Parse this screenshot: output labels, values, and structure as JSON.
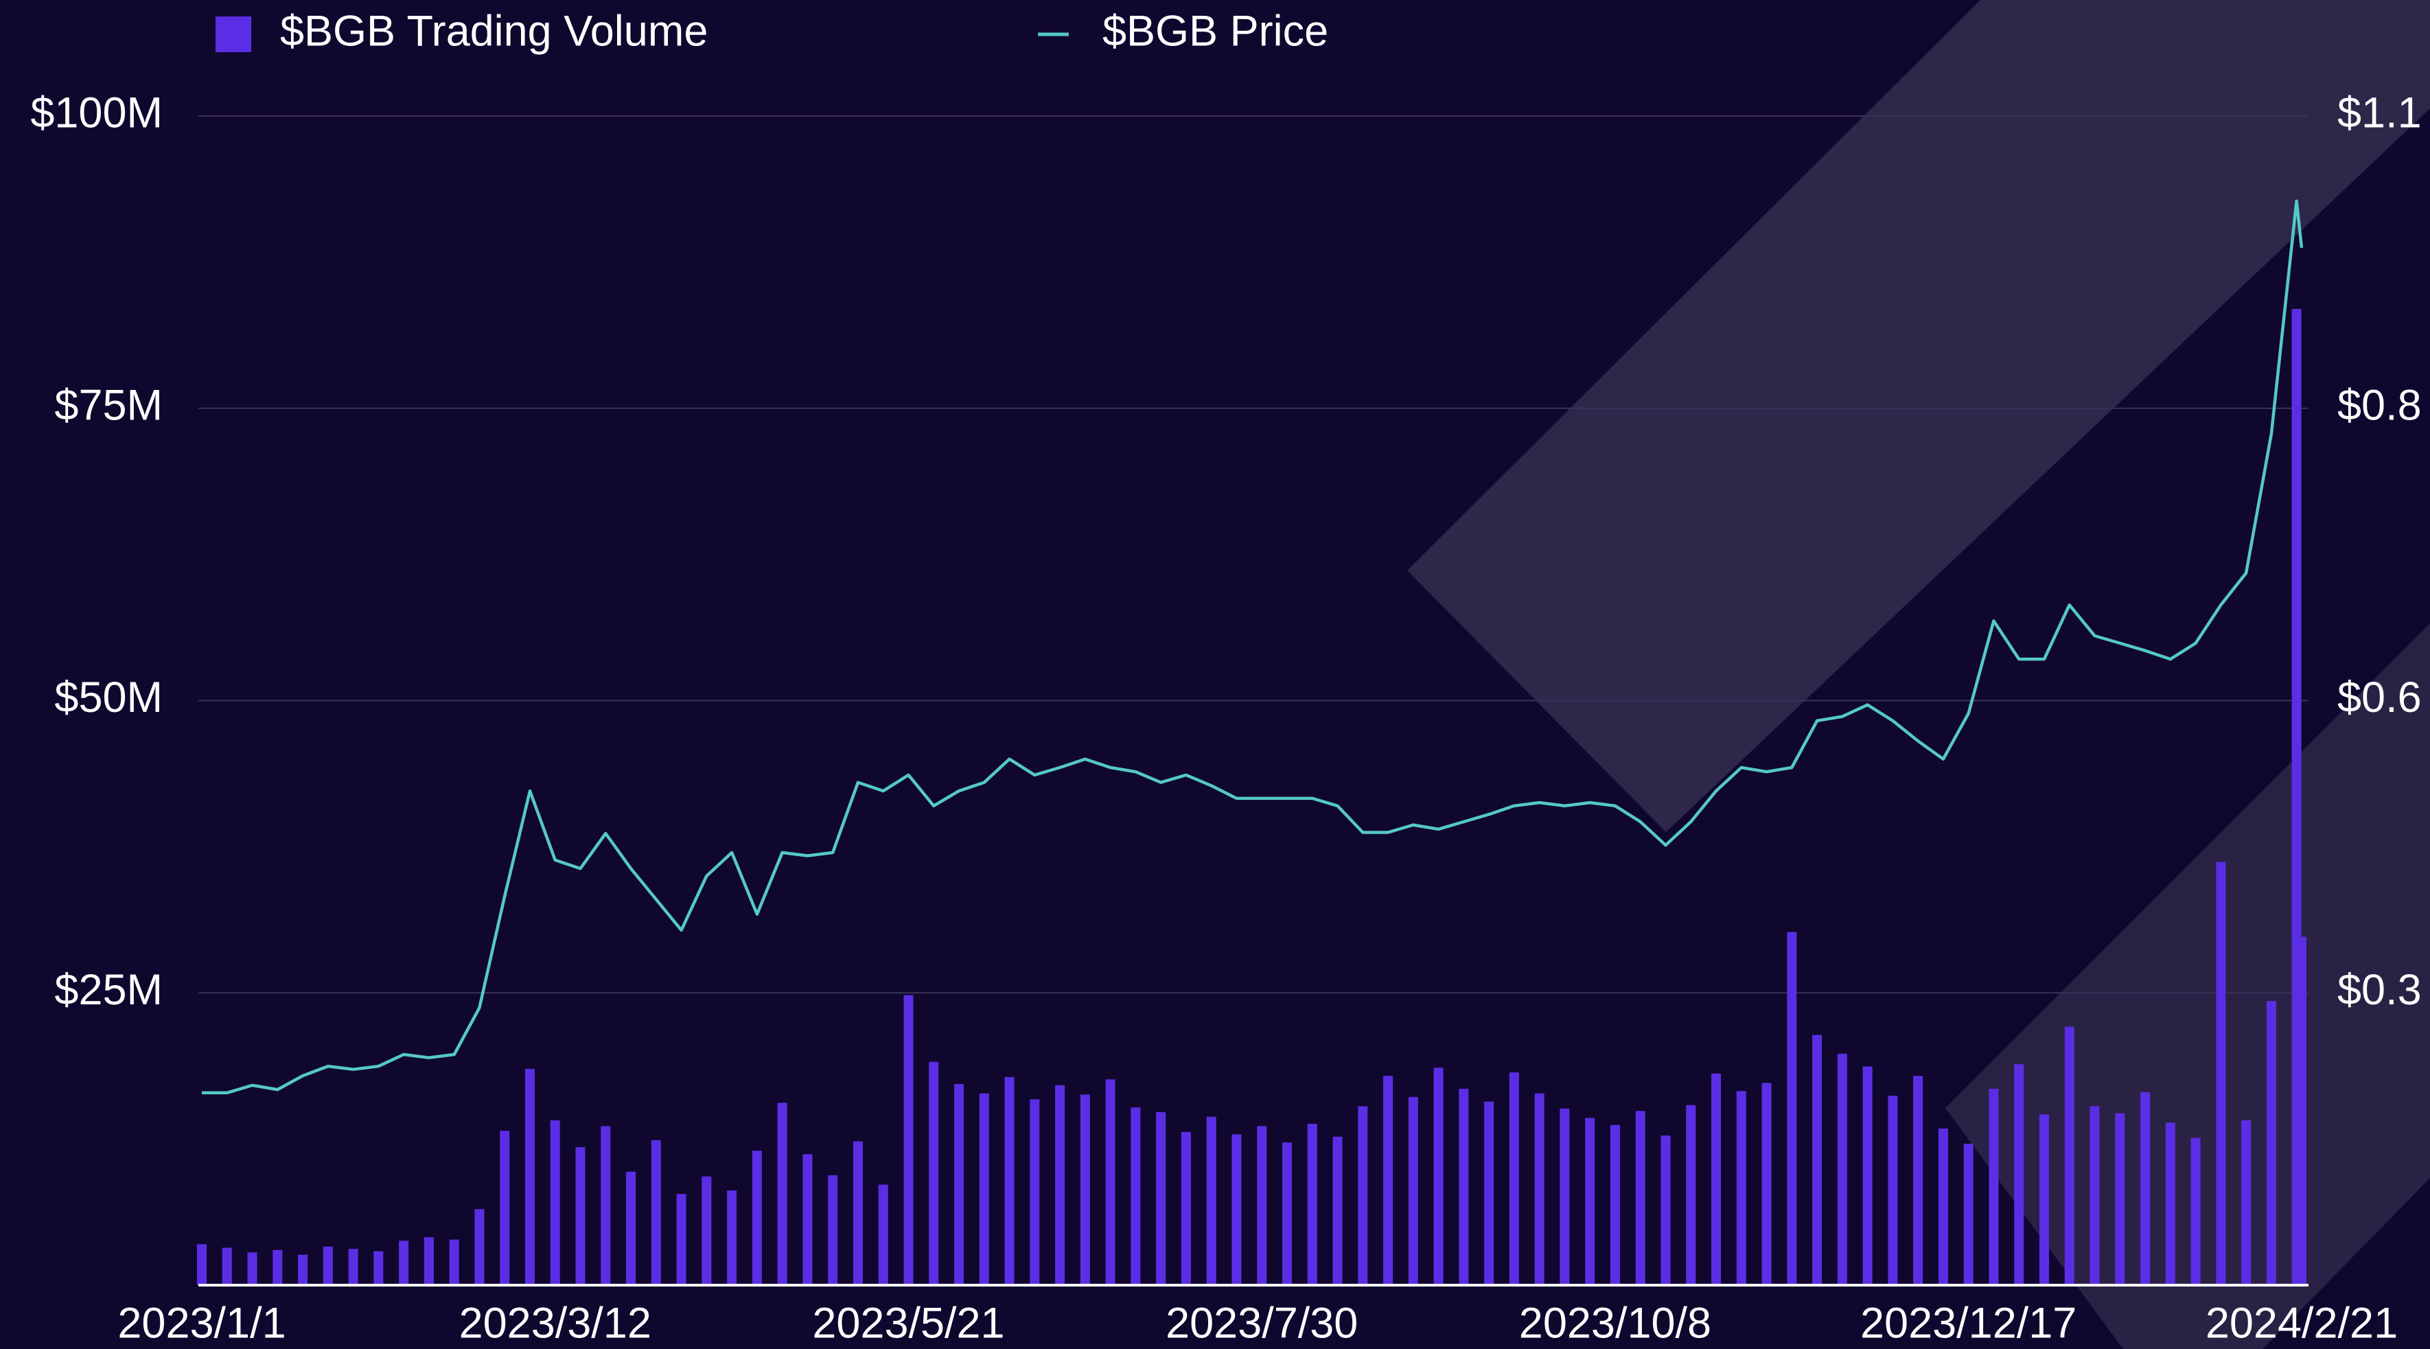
{
  "chart_data": {
    "type": "bar",
    "x": [
      "2023/1/1",
      "2023/1/6",
      "2023/1/11",
      "2023/1/16",
      "2023/1/21",
      "2023/1/26",
      "2023/1/31",
      "2023/2/5",
      "2023/2/10",
      "2023/2/15",
      "2023/2/20",
      "2023/2/25",
      "2023/3/2",
      "2023/3/7",
      "2023/3/12",
      "2023/3/17",
      "2023/3/22",
      "2023/3/27",
      "2023/4/1",
      "2023/4/6",
      "2023/4/11",
      "2023/4/16",
      "2023/4/21",
      "2023/4/26",
      "2023/5/1",
      "2023/5/6",
      "2023/5/11",
      "2023/5/16",
      "2023/5/21",
      "2023/5/26",
      "2023/5/31",
      "2023/6/5",
      "2023/6/10",
      "2023/6/15",
      "2023/6/20",
      "2023/6/25",
      "2023/6/30",
      "2023/7/5",
      "2023/7/10",
      "2023/7/15",
      "2023/7/20",
      "2023/7/25",
      "2023/7/30",
      "2023/8/4",
      "2023/8/9",
      "2023/8/14",
      "2023/8/19",
      "2023/8/24",
      "2023/8/29",
      "2023/9/3",
      "2023/9/8",
      "2023/9/13",
      "2023/9/18",
      "2023/9/23",
      "2023/9/28",
      "2023/10/3",
      "2023/10/8",
      "2023/10/13",
      "2023/10/18",
      "2023/10/23",
      "2023/10/28",
      "2023/11/2",
      "2023/11/7",
      "2023/11/12",
      "2023/11/17",
      "2023/11/22",
      "2023/11/27",
      "2023/12/2",
      "2023/12/7",
      "2023/12/12",
      "2023/12/17",
      "2023/12/22",
      "2023/12/27",
      "2024/1/1",
      "2024/1/6",
      "2024/1/11",
      "2024/1/16",
      "2024/1/21",
      "2024/1/26",
      "2024/1/31",
      "2024/2/5",
      "2024/2/10",
      "2024/2/15",
      "2024/2/20",
      "2024/2/21"
    ],
    "series": [
      {
        "name": "$BGB Trading Volume",
        "type": "bar",
        "color": "#5b2ee6",
        "values": [
          3500000,
          3200000,
          2800000,
          3000000,
          2600000,
          3300000,
          3100000,
          2900000,
          3800000,
          4100000,
          3900000,
          6500000,
          13200000,
          18500000,
          14100000,
          11800000,
          13600000,
          9700000,
          12400000,
          7800000,
          9300000,
          8100000,
          11500000,
          15600000,
          11200000,
          9400000,
          12300000,
          8600000,
          24800000,
          19100000,
          17200000,
          16400000,
          17800000,
          15900000,
          17100000,
          16300000,
          17600000,
          15200000,
          14800000,
          13100000,
          14400000,
          12900000,
          13600000,
          12200000,
          13800000,
          12700000,
          15300000,
          17900000,
          16100000,
          18600000,
          16800000,
          15700000,
          18200000,
          16400000,
          15100000,
          14300000,
          13700000,
          14900000,
          12800000,
          15400000,
          18100000,
          16600000,
          17300000,
          30200000,
          21400000,
          19800000,
          18700000,
          16200000,
          17900000,
          13400000,
          12100000,
          16800000,
          18900000,
          14600000,
          22100000,
          15300000,
          14700000,
          16500000,
          13900000,
          12600000,
          36200000,
          14100000,
          24300000,
          83500000,
          29800000
        ]
      },
      {
        "name": "$BGB Price",
        "type": "line",
        "axis": "y2",
        "color": "#55c8c8",
        "values": [
          0.181,
          0.181,
          0.188,
          0.184,
          0.197,
          0.206,
          0.203,
          0.206,
          0.217,
          0.214,
          0.217,
          0.261,
          0.366,
          0.465,
          0.4,
          0.392,
          0.425,
          0.392,
          0.363,
          0.334,
          0.385,
          0.407,
          0.349,
          0.407,
          0.404,
          0.407,
          0.473,
          0.465,
          0.48,
          0.451,
          0.465,
          0.473,
          0.495,
          0.48,
          0.487,
          0.495,
          0.487,
          0.483,
          0.473,
          0.48,
          0.47,
          0.458,
          0.458,
          0.458,
          0.458,
          0.451,
          0.426,
          0.426,
          0.433,
          0.429,
          0.436,
          0.443,
          0.451,
          0.454,
          0.451,
          0.454,
          0.451,
          0.436,
          0.414,
          0.436,
          0.465,
          0.487,
          0.483,
          0.487,
          0.531,
          0.535,
          0.546,
          0.531,
          0.512,
          0.495,
          0.538,
          0.625,
          0.589,
          0.589,
          0.64,
          0.611,
          0.604,
          0.597,
          0.589,
          0.604,
          0.64,
          0.67,
          0.801,
          1.02,
          0.976
        ]
      }
    ],
    "xlim": [
      "2023/1/1",
      "2024/2/21"
    ],
    "xticks": [
      "2023/1/1",
      "2023/3/12",
      "2023/5/21",
      "2023/7/30",
      "2023/10/8",
      "2023/12/17",
      "2024/2/21"
    ],
    "ylim": [
      0,
      100000000
    ],
    "yticks": [
      {
        "value": 25000000,
        "label": "$25M"
      },
      {
        "value": 50000000,
        "label": "$50M"
      },
      {
        "value": 75000000,
        "label": "$75M"
      },
      {
        "value": 100000000,
        "label": "$100M"
      }
    ],
    "y2lim": [
      0,
      1.1
    ],
    "y2ticks": [
      {
        "value": 0.275,
        "label": "$0.3"
      },
      {
        "value": 0.55,
        "label": "$0.6"
      },
      {
        "value": 0.825,
        "label": "$0.8"
      },
      {
        "value": 1.1,
        "label": "$1.1"
      }
    ],
    "grid": true,
    "legend": "top-left"
  }
}
